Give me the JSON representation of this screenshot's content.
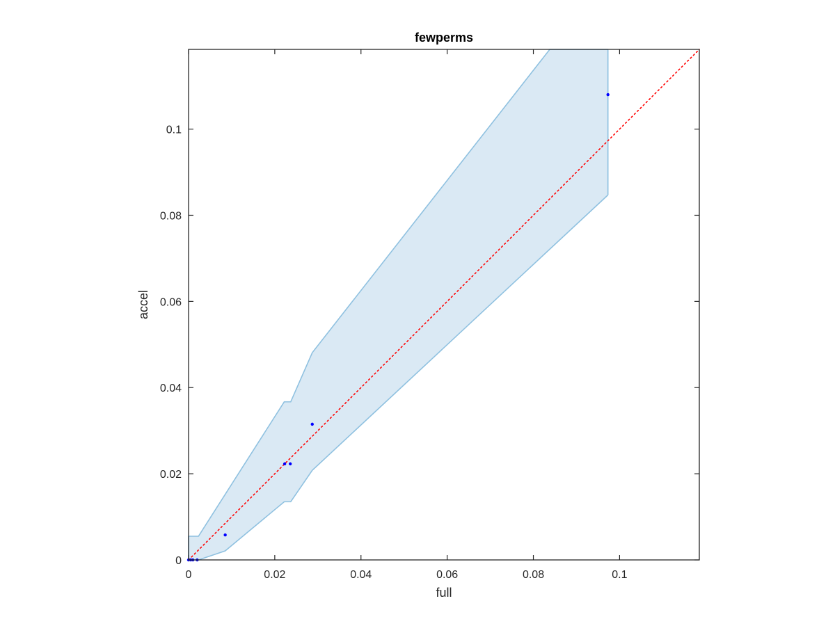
{
  "chart_data": {
    "type": "scatter",
    "title": "fewperms",
    "xlabel": "full",
    "ylabel": "accel",
    "xlim": [
      0,
      0.1185
    ],
    "ylim": [
      0,
      0.1185
    ],
    "xticks": [
      0,
      0.02,
      0.04,
      0.06,
      0.08,
      0.1
    ],
    "xtick_labels": [
      "0",
      "0.02",
      "0.04",
      "0.06",
      "0.08",
      "0.1"
    ],
    "yticks": [
      0,
      0.02,
      0.04,
      0.06,
      0.08,
      0.1
    ],
    "ytick_labels": [
      "0",
      "0.02",
      "0.04",
      "0.06",
      "0.08",
      "0.1"
    ],
    "grid": false,
    "colors": {
      "points": "#0000ff",
      "band_fill": "#dae9f4",
      "band_edge": "#8fc1e0",
      "reference_line": "#ff0000",
      "axes": "#262626"
    },
    "points": {
      "x": [
        0,
        0.0005,
        0.001,
        0.002,
        0.0085,
        0.0223,
        0.0236,
        0.0287,
        0.0973
      ],
      "y": [
        0,
        0,
        0,
        0,
        0.0058,
        0.0223,
        0.0223,
        0.0315,
        0.108
      ]
    },
    "band_upper": {
      "x": [
        0,
        0.0023,
        0.0222,
        0.0237,
        0.0287,
        0.0838,
        0.0973
      ],
      "y": [
        0.0055,
        0.0055,
        0.0367,
        0.0367,
        0.0481,
        0.1185,
        0.1185
      ]
    },
    "band_lower": {
      "x": [
        0,
        0.0023,
        0.0085,
        0.0222,
        0.0237,
        0.0287,
        0.0973
      ],
      "y": [
        0,
        0,
        0.0021,
        0.0135,
        0.0135,
        0.0208,
        0.0847
      ]
    },
    "reference_line": {
      "style": "dotted",
      "x": [
        0,
        0.1185
      ],
      "y": [
        0,
        0.1185
      ]
    }
  }
}
